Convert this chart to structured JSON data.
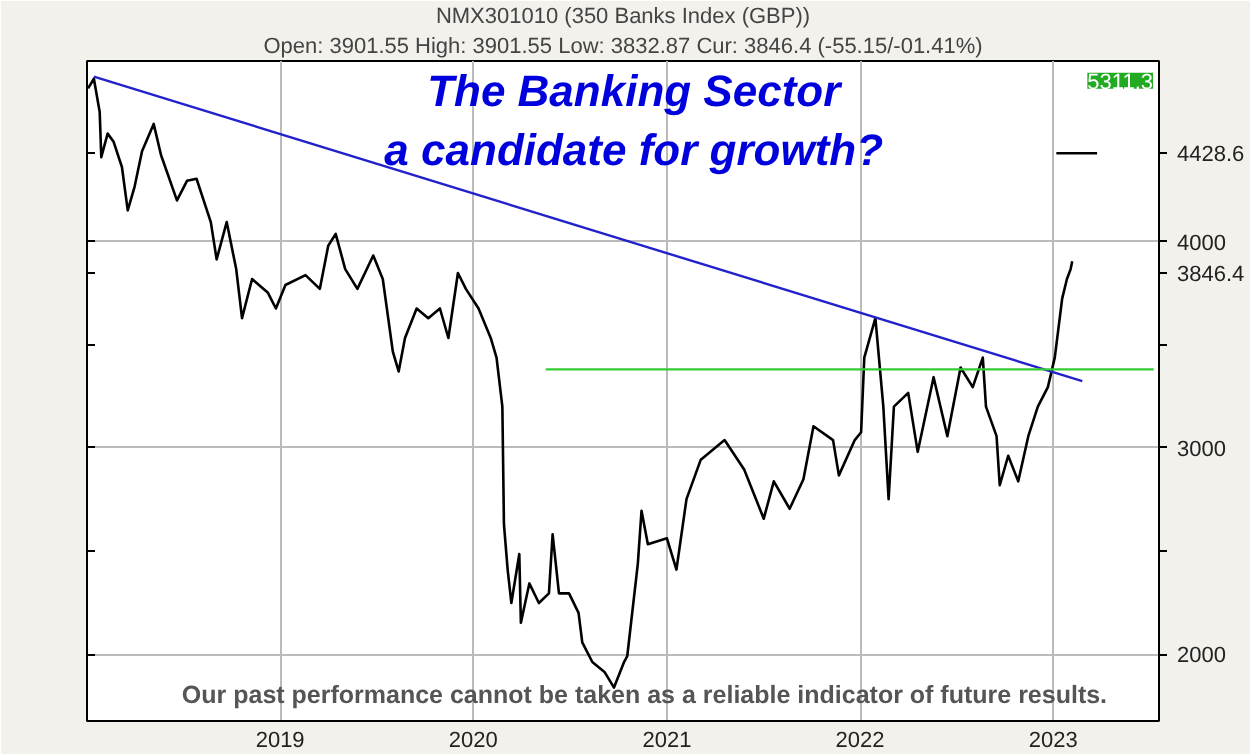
{
  "chart_data": {
    "type": "line",
    "title": "NMX301010 (350 Banks Index (GBP))",
    "subtitle": "Open: 3901.55 High: 3901.55 Low: 3832.87 Cur: 3846.4 (-55.15/-01.41%)",
    "annotations": [
      "The Banking Sector",
      "a candidate for growth?",
      "Our past performance cannot be taken as a reliable indicator of future results.",
      "5311.3"
    ],
    "xlim": [
      "2018-01-01",
      "2023-07-20"
    ],
    "ylim": [
      1676,
      4876
    ],
    "xticks": [
      {
        "value": "2019-01-01",
        "label": "2019"
      },
      {
        "value": "2020-01-01",
        "label": "2020"
      },
      {
        "value": "2021-01-01",
        "label": "2021"
      },
      {
        "value": "2022-01-01",
        "label": "2022"
      },
      {
        "value": "2023-01-01",
        "label": "2023"
      }
    ],
    "yticks": [
      2000,
      {
        "value": 2500,
        "label": null
      },
      3000,
      {
        "value": 3500,
        "label": null
      },
      {
        "value": 3846.4,
        "label": "3846.4"
      },
      4000,
      {
        "value": 4428.6,
        "label": "4428.6"
      }
    ],
    "grid": true,
    "series": [
      {
        "color": "#000000",
        "x": [
          "2018-01-03",
          "2018-01-14",
          "2018-01-25",
          "2018-01-28",
          "2018-02-09",
          "2018-02-20",
          "2018-03-08",
          "2018-03-19",
          "2018-04-01",
          "2018-04-15",
          "2018-05-07",
          "2018-05-21",
          "2018-06-20",
          "2018-07-09",
          "2018-07-27",
          "2018-08-23",
          "2018-09-03",
          "2018-09-22",
          "2018-10-10",
          "2018-10-21",
          "2018-11-09",
          "2018-12-09",
          "2018-12-24",
          "2019-01-11",
          "2019-02-18",
          "2019-03-17",
          "2019-04-02",
          "2019-04-16",
          "2019-05-04",
          "2019-05-27",
          "2019-06-26",
          "2019-07-14",
          "2019-08-02",
          "2019-08-13",
          "2019-08-25",
          "2019-09-16",
          "2019-10-08",
          "2019-10-30",
          "2019-11-15",
          "2019-12-03",
          "2019-12-18",
          "2020-01-11",
          "2020-02-03",
          "2020-02-14",
          "2020-02-25",
          "2020-02-28",
          "2020-03-06",
          "2020-03-13",
          "2020-03-28",
          "2020-03-31",
          "2020-04-16",
          "2020-05-04",
          "2020-05-23",
          "2020-05-30",
          "2020-06-11",
          "2020-06-30",
          "2020-07-18",
          "2020-07-25",
          "2020-08-13",
          "2020-09-05",
          "2020-09-23",
          "2020-10-12",
          "2020-10-18",
          "2020-11-07",
          "2020-11-14",
          "2020-11-26",
          "2021-01-01",
          "2021-01-19",
          "2021-02-07",
          "2021-03-06",
          "2021-04-20",
          "2021-05-27",
          "2021-07-03",
          "2021-07-22",
          "2021-08-21",
          "2021-09-16",
          "2021-10-05",
          "2021-11-11",
          "2021-11-22",
          "2021-12-22",
          "2022-01-03",
          "2022-01-09",
          "2022-01-30",
          "2022-02-14",
          "2022-02-24",
          "2022-03-06",
          "2022-04-02",
          "2022-04-20",
          "2022-05-20",
          "2022-06-15",
          "2022-07-10",
          "2022-08-02",
          "2022-08-21",
          "2022-08-27",
          "2022-09-16",
          "2022-09-22",
          "2022-10-08",
          "2022-10-27",
          "2022-11-15",
          "2022-12-03",
          "2022-12-22",
          "2023-01-04",
          "2023-01-11",
          "2023-01-18",
          "2023-01-27",
          "2023-02-03",
          "2023-02-06"
        ],
        "values": [
          4743,
          4790,
          4629,
          4410,
          4524,
          4486,
          4362,
          4152,
          4267,
          4438,
          4571,
          4419,
          4200,
          4295,
          4305,
          4095,
          3914,
          4095,
          3867,
          3629,
          3819,
          3752,
          3676,
          3790,
          3838,
          3771,
          3981,
          4038,
          3867,
          3771,
          3933,
          3819,
          3467,
          3371,
          3533,
          3676,
          3629,
          3676,
          3533,
          3848,
          3771,
          3676,
          3533,
          3438,
          3200,
          2629,
          2410,
          2248,
          2486,
          2152,
          2343,
          2248,
          2295,
          2581,
          2295,
          2295,
          2200,
          2057,
          1962,
          1914,
          1838,
          1962,
          1990,
          2438,
          2695,
          2533,
          2562,
          2410,
          2752,
          2943,
          3038,
          2895,
          2657,
          2838,
          2705,
          2848,
          3105,
          3038,
          2867,
          3038,
          3076,
          3438,
          3629,
          3200,
          2752,
          3200,
          3267,
          2981,
          3343,
          3057,
          3390,
          3295,
          3438,
          3200,
          3057,
          2819,
          2962,
          2838,
          3057,
          3200,
          3295,
          3438,
          3581,
          3724,
          3819,
          3867,
          3905
        ]
      },
      {
        "color": "#2222cc",
        "x": [
          "2018-01-14",
          "2023-02-25"
        ],
        "values": [
          4800,
          3324
        ]
      },
      {
        "color": "#33cc33",
        "x": [
          "2020-05-17",
          "2023-07-10"
        ],
        "values": [
          3381,
          3381
        ]
      },
      {
        "color": "#000000",
        "x": [
          "2023-01-07",
          "2023-03-25"
        ],
        "values": [
          4428.6,
          4428.6
        ]
      }
    ]
  }
}
